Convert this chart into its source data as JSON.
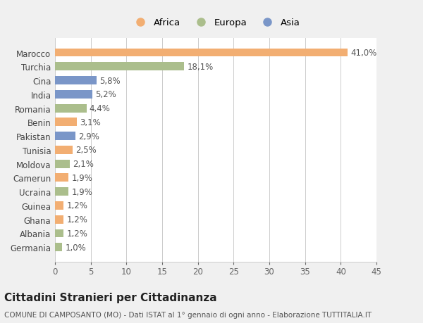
{
  "categories": [
    "Germania",
    "Albania",
    "Ghana",
    "Guinea",
    "Ucraina",
    "Camerun",
    "Moldova",
    "Tunisia",
    "Pakistan",
    "Benin",
    "Romania",
    "India",
    "Cina",
    "Turchia",
    "Marocco"
  ],
  "values": [
    1.0,
    1.2,
    1.2,
    1.2,
    1.9,
    1.9,
    2.1,
    2.5,
    2.9,
    3.1,
    4.4,
    5.2,
    5.8,
    18.1,
    41.0
  ],
  "labels": [
    "1,0%",
    "1,2%",
    "1,2%",
    "1,2%",
    "1,9%",
    "1,9%",
    "2,1%",
    "2,5%",
    "2,9%",
    "3,1%",
    "4,4%",
    "5,2%",
    "5,8%",
    "18,1%",
    "41,0%"
  ],
  "continent": [
    "Europa",
    "Europa",
    "Africa",
    "Africa",
    "Europa",
    "Africa",
    "Europa",
    "Africa",
    "Asia",
    "Africa",
    "Europa",
    "Asia",
    "Asia",
    "Europa",
    "Africa"
  ],
  "colors": {
    "Africa": "#F2AE72",
    "Europa": "#ABBE8C",
    "Asia": "#7A96C8"
  },
  "legend_order": [
    "Africa",
    "Europa",
    "Asia"
  ],
  "title": "Cittadini Stranieri per Cittadinanza",
  "subtitle": "COMUNE DI CAMPOSANTO (MO) - Dati ISTAT al 1° gennaio di ogni anno - Elaborazione TUTTITALIA.IT",
  "xlim": [
    0,
    45
  ],
  "xticks": [
    0,
    5,
    10,
    15,
    20,
    25,
    30,
    35,
    40,
    45
  ],
  "background_color": "#f0f0f0",
  "plot_bg_color": "#ffffff",
  "grid_color": "#cccccc",
  "label_fontsize": 8.5,
  "ytick_fontsize": 8.5,
  "xtick_fontsize": 8.5,
  "title_fontsize": 11,
  "subtitle_fontsize": 7.5,
  "bar_height": 0.6
}
